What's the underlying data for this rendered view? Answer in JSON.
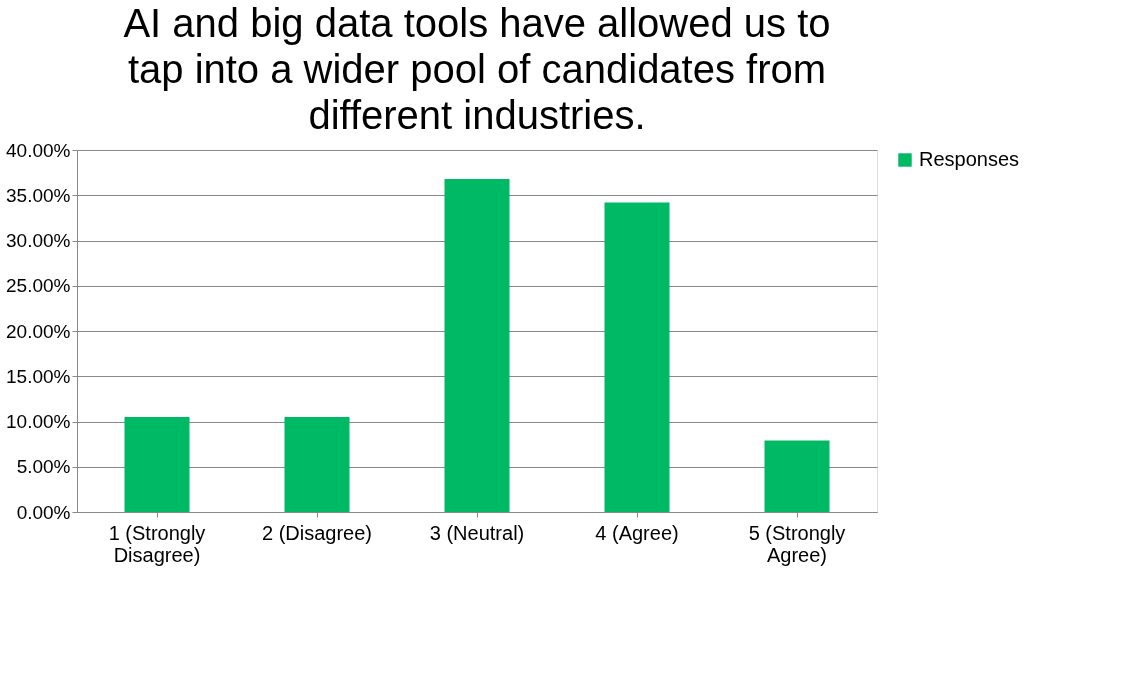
{
  "chart_data": {
    "type": "bar",
    "title": "AI and big data tools have allowed us to tap into a wider pool of candidates from different industries.",
    "categories": [
      "1 (Strongly Disagree)",
      "2 (Disagree)",
      "3 (Neutral)",
      "4 (Agree)",
      "5 (Strongly Agree)"
    ],
    "series": [
      {
        "name": "Responses",
        "color": "#00b964",
        "values": [
          10.5,
          10.5,
          36.8,
          34.2,
          7.9
        ]
      }
    ],
    "ylim": [
      0,
      40
    ],
    "yticks": [
      {
        "value": 0,
        "label": "0.00%"
      },
      {
        "value": 5,
        "label": "5.00%"
      },
      {
        "value": 10,
        "label": "10.00%"
      },
      {
        "value": 15,
        "label": "15.00%"
      },
      {
        "value": 20,
        "label": "20.00%"
      },
      {
        "value": 25,
        "label": "25.00%"
      },
      {
        "value": 30,
        "label": "30.00%"
      },
      {
        "value": 35,
        "label": "35.00%"
      },
      {
        "value": 40,
        "label": "40.00%"
      }
    ],
    "grid": "y",
    "legend": "right"
  }
}
